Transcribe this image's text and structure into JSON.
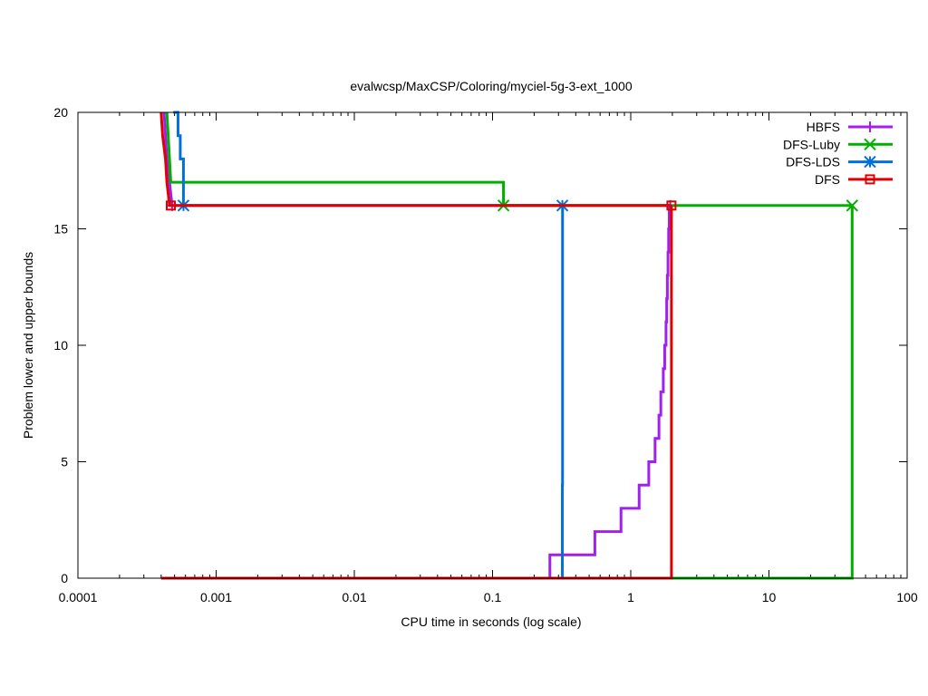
{
  "chart_data": {
    "type": "line",
    "title": "evalwcsp/MaxCSP/Coloring/myciel-5g-3-ext_1000",
    "xlabel": "CPU time in seconds (log scale)",
    "ylabel": "Problem lower and upper bounds",
    "xscale": "log",
    "xlim": [
      0.0001,
      100
    ],
    "ylim": [
      0,
      20
    ],
    "xticks": [
      {
        "value": 0.0001,
        "label": "0.0001"
      },
      {
        "value": 0.001,
        "label": "0.001"
      },
      {
        "value": 0.01,
        "label": "0.01"
      },
      {
        "value": 0.1,
        "label": "0.1"
      },
      {
        "value": 1,
        "label": "1"
      },
      {
        "value": 10,
        "label": "10"
      },
      {
        "value": 100,
        "label": "100"
      }
    ],
    "yticks": [
      {
        "value": 0,
        "label": "0"
      },
      {
        "value": 5,
        "label": "5"
      },
      {
        "value": 10,
        "label": "10"
      },
      {
        "value": 15,
        "label": "15"
      },
      {
        "value": 20,
        "label": "20"
      }
    ],
    "legend_position": "top-right",
    "series": [
      {
        "name": "HBFS",
        "color": "#a020f0",
        "marker": "plus",
        "upper": [
          [
            0.00042,
            20
          ],
          [
            0.00043,
            19
          ],
          [
            0.00044,
            18
          ],
          [
            0.00046,
            17
          ],
          [
            0.00048,
            16
          ],
          [
            1.93,
            16
          ]
        ],
        "lower": [
          [
            0.00042,
            0
          ],
          [
            0.26,
            0
          ],
          [
            0.26,
            1
          ],
          [
            0.55,
            1
          ],
          [
            0.55,
            2
          ],
          [
            0.85,
            2
          ],
          [
            0.85,
            3
          ],
          [
            1.15,
            3
          ],
          [
            1.15,
            4
          ],
          [
            1.35,
            4
          ],
          [
            1.35,
            5
          ],
          [
            1.5,
            5
          ],
          [
            1.5,
            6
          ],
          [
            1.6,
            6
          ],
          [
            1.6,
            7
          ],
          [
            1.65,
            7
          ],
          [
            1.65,
            8
          ],
          [
            1.72,
            8
          ],
          [
            1.72,
            9
          ],
          [
            1.76,
            9
          ],
          [
            1.76,
            10
          ],
          [
            1.8,
            10
          ],
          [
            1.8,
            11
          ],
          [
            1.82,
            11
          ],
          [
            1.82,
            12
          ],
          [
            1.84,
            12
          ],
          [
            1.84,
            13
          ],
          [
            1.86,
            13
          ],
          [
            1.86,
            14
          ],
          [
            1.88,
            14
          ],
          [
            1.88,
            15
          ],
          [
            1.9,
            15
          ],
          [
            1.9,
            16
          ],
          [
            1.93,
            16
          ]
        ],
        "marks": [
          [
            0.00048,
            16
          ],
          [
            1.93,
            16
          ]
        ]
      },
      {
        "name": "DFS-Luby",
        "color": "#00b000",
        "marker": "x",
        "upper": [
          [
            0.00044,
            20
          ],
          [
            0.00045,
            19
          ],
          [
            0.00047,
            17
          ],
          [
            0.12,
            17
          ],
          [
            0.12,
            16
          ],
          [
            40,
            16
          ]
        ],
        "lower": [
          [
            0.00044,
            0
          ],
          [
            40,
            0
          ],
          [
            40,
            16
          ]
        ],
        "marks": [
          [
            0.12,
            16
          ],
          [
            40,
            16
          ]
        ]
      },
      {
        "name": "DFS-LDS",
        "color": "#0070e0",
        "marker": "star",
        "upper": [
          [
            0.00049,
            20
          ],
          [
            0.00053,
            20
          ],
          [
            0.00053,
            19
          ],
          [
            0.00055,
            19
          ],
          [
            0.00055,
            18
          ],
          [
            0.00058,
            18
          ],
          [
            0.00058,
            16
          ],
          [
            0.32,
            16
          ]
        ],
        "lower": [
          [
            0.00049,
            0
          ],
          [
            0.32,
            0
          ],
          [
            0.32,
            4
          ],
          [
            0.321,
            4
          ],
          [
            0.321,
            16
          ],
          [
            0.32,
            16
          ]
        ],
        "marks": [
          [
            0.00058,
            16
          ],
          [
            0.32,
            16
          ]
        ]
      },
      {
        "name": "DFS",
        "color": "#e00000",
        "marker": "square",
        "upper": [
          [
            0.0004,
            20
          ],
          [
            0.00041,
            19
          ],
          [
            0.00043,
            18
          ],
          [
            0.00044,
            17
          ],
          [
            0.00046,
            16
          ],
          [
            1.97,
            16
          ]
        ],
        "lower": [
          [
            0.0004,
            0
          ],
          [
            1.97,
            0
          ],
          [
            1.97,
            16
          ]
        ],
        "marks": [
          [
            0.00047,
            16
          ],
          [
            1.97,
            16
          ]
        ]
      }
    ]
  }
}
